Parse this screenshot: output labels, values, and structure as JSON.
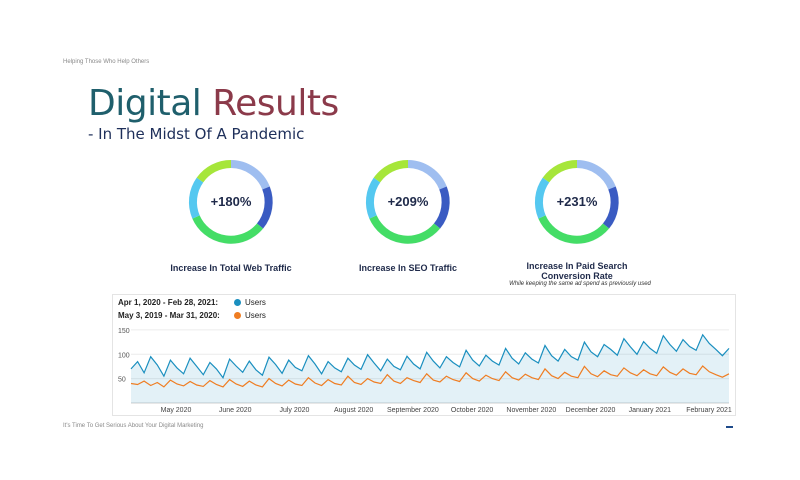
{
  "tagline": "Helping Those Who Help Others",
  "title": {
    "word1": "Digital",
    "word2": "Results"
  },
  "subtitle": "-  In The Midst Of A Pandemic",
  "stats": [
    {
      "value": "+180%",
      "label": "Increase In Total Web Traffic",
      "note": ""
    },
    {
      "value": "+209%",
      "label": "Increase In SEO Traffic",
      "note": ""
    },
    {
      "value": "+231%",
      "label": "Increase In Paid Search Conversion Rate",
      "note": "While keeping the same ad spend as previously used"
    }
  ],
  "colors": {
    "current": "#1a8fbf",
    "previous": "#ef7d22",
    "title_teal": "#1f5f6c",
    "title_red": "#8b3a4a"
  },
  "chart_data": {
    "type": "line",
    "series": [
      {
        "name": "Users",
        "range": "Apr 1, 2020 - Feb 28, 2021:",
        "color": "#1a8fbf",
        "values": [
          70,
          85,
          62,
          95,
          78,
          55,
          88,
          72,
          60,
          92,
          75,
          58,
          83,
          70,
          52,
          90,
          76,
          63,
          86,
          68,
          57,
          94,
          79,
          61,
          88,
          73,
          66,
          97,
          80,
          60,
          85,
          72,
          64,
          92,
          78,
          69,
          99,
          82,
          66,
          90,
          75,
          68,
          96,
          80,
          70,
          104,
          86,
          72,
          95,
          83,
          74,
          108,
          88,
          76,
          98,
          86,
          78,
          112,
          92,
          80,
          103,
          90,
          82,
          118,
          97,
          86,
          110,
          95,
          88,
          125,
          105,
          95,
          120,
          110,
          98,
          132,
          115,
          100,
          126,
          112,
          102,
          138,
          120,
          106,
          130,
          116,
          108,
          140,
          122,
          110,
          97,
          112
        ]
      },
      {
        "name": "Users",
        "range": "May 3, 2019 - Mar 31, 2020:",
        "color": "#ef7d22",
        "values": [
          40,
          38,
          45,
          36,
          42,
          33,
          47,
          39,
          35,
          44,
          37,
          34,
          46,
          38,
          33,
          48,
          39,
          34,
          45,
          37,
          33,
          50,
          40,
          35,
          47,
          39,
          36,
          52,
          41,
          36,
          48,
          40,
          37,
          55,
          42,
          38,
          50,
          43,
          40,
          58,
          45,
          40,
          52,
          46,
          42,
          60,
          47,
          43,
          55,
          48,
          44,
          62,
          50,
          45,
          57,
          50,
          46,
          64,
          52,
          47,
          59,
          52,
          48,
          70,
          56,
          50,
          63,
          55,
          52,
          75,
          60,
          54,
          66,
          58,
          55,
          72,
          62,
          56,
          68,
          60,
          56,
          74,
          63,
          57,
          70,
          61,
          58,
          76,
          64,
          58,
          53,
          60
        ]
      }
    ],
    "x_labels": [
      "May 2020",
      "June 2020",
      "July 2020",
      "August 2020",
      "September 2020",
      "October 2020",
      "November 2020",
      "December 2020",
      "January 2021",
      "February 2021"
    ],
    "y_ticks": [
      50,
      100,
      150
    ],
    "ylim": [
      0,
      160
    ],
    "grid": true,
    "legend_placement": "top-left"
  },
  "footer": "It's Time To Get Serious About Your Digital Marketing"
}
